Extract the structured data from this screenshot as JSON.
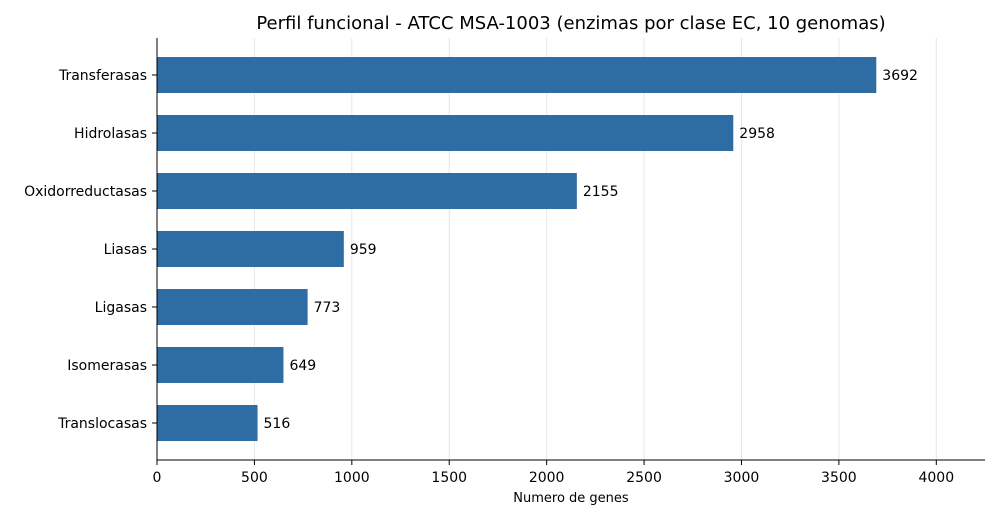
{
  "chart_data": {
    "type": "bar",
    "orientation": "horizontal",
    "title": "Perfil funcional - ATCC MSA-1003 (enzimas por clase EC, 10 genomas)",
    "xlabel": "Numero de genes",
    "ylabel": "",
    "categories": [
      "Transferasas",
      "Hidrolasas",
      "Oxidorreductasas",
      "Liasas",
      "Ligasas",
      "Isomerasas",
      "Translocasas"
    ],
    "values": [
      3692,
      2958,
      2155,
      959,
      773,
      649,
      516
    ],
    "value_labels": [
      "3692",
      "2958",
      "2155",
      "959",
      "773",
      "649",
      "516"
    ],
    "xlim": [
      0,
      4250
    ],
    "xticks": [
      0,
      500,
      1000,
      1500,
      2000,
      2500,
      3000,
      3500,
      4000
    ],
    "xtick_labels": [
      "0",
      "500",
      "1000",
      "1500",
      "2000",
      "2500",
      "3000",
      "3500",
      "4000"
    ],
    "grid": "vertical",
    "legend": "none",
    "bar_color": "#2e6ca4",
    "grid_color": "#e6e6e6"
  }
}
